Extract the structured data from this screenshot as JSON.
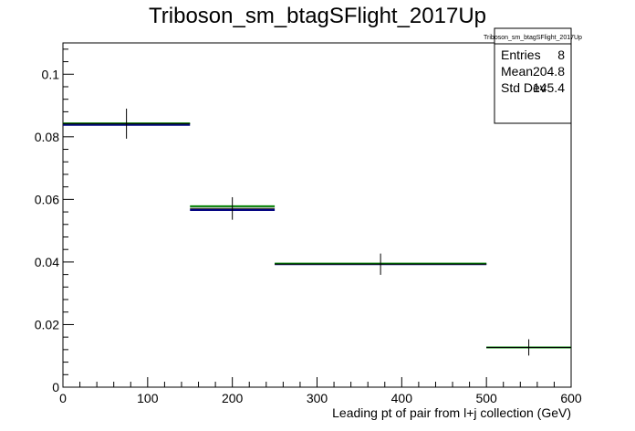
{
  "chart_data": {
    "type": "histogram",
    "title": "Triboson_sm_btagSFlight_2017Up",
    "xlabel": "Leading pt of pair from l+j collection (GeV)",
    "ylabel": "",
    "xlim": [
      0,
      600
    ],
    "ylim": [
      0,
      0.11
    ],
    "x_ticks": [
      0,
      100,
      200,
      300,
      400,
      500,
      600
    ],
    "y_ticks": [
      0,
      0.02,
      0.04,
      0.06,
      0.08,
      0.1
    ],
    "x_tick_labels": [
      "0",
      "100",
      "200",
      "300",
      "400",
      "500",
      "600"
    ],
    "y_tick_labels": [
      "0",
      "0.02",
      "0.04",
      "0.06",
      "0.08",
      "0.1"
    ],
    "bin_edges": [
      0,
      150,
      250,
      500,
      600
    ],
    "series": [
      {
        "color": "#000080",
        "style": "step",
        "values": [
          0.0838,
          0.0566,
          0.0393,
          0.0127
        ]
      },
      {
        "color": "#008000",
        "style": "step",
        "values": [
          0.0843,
          0.0578,
          0.0395,
          0.0127
        ]
      },
      {
        "color": "#000000",
        "style": "errorbar",
        "x_centers": [
          75,
          200,
          375,
          550
        ],
        "values": [
          0.0842,
          0.0571,
          0.0393,
          0.0127
        ],
        "errors": [
          0.0048,
          0.0036,
          0.0034,
          0.0026
        ]
      }
    ],
    "stats_box": {
      "title": "Triboson_sm_btagSFlight_2017Up",
      "rows": [
        {
          "label": "Entries",
          "value": "8"
        },
        {
          "label": "Mean",
          "value": "204.8"
        },
        {
          "label": "Std Dev",
          "value": "145.4"
        }
      ]
    }
  }
}
